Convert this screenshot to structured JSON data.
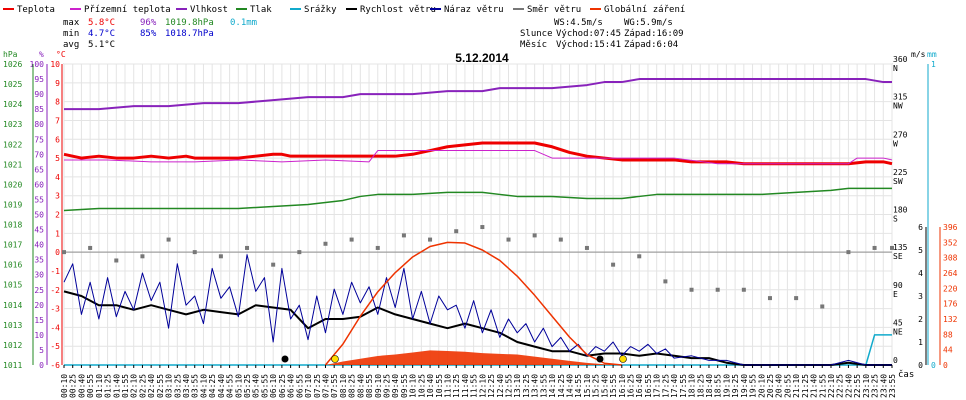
{
  "legend": [
    {
      "label": "Teplota",
      "color": "#ee0000"
    },
    {
      "label": "Přízemní teplota",
      "color": "#cc22cc"
    },
    {
      "label": "Vlhkost",
      "color": "#8822bb"
    },
    {
      "label": "Tlak",
      "color": "#228822"
    },
    {
      "label": "Srážky",
      "color": "#11aacc"
    },
    {
      "label": "Rychlost větru",
      "color": "#000000"
    },
    {
      "label": "Náraz větru",
      "color": "#000099"
    },
    {
      "label": "Směr větru",
      "color": "#777777"
    },
    {
      "label": "Globální záření",
      "color": "#ee3300"
    }
  ],
  "stats": {
    "max_label": "max",
    "max_temp": "5.8°C",
    "max_hum": "96%",
    "max_press": "1019.8hPa",
    "max_rain": "0.1mm",
    "min_label": "min",
    "min_temp": "4.7°C",
    "min_hum": "85%",
    "min_press": "1018.7hPa",
    "avg_label": "avg",
    "avg_temp": "5.1°C"
  },
  "info": {
    "ws": "WS:4.5m/s",
    "wg": "WG:5.9m/s",
    "sun_label": "Slunce",
    "sun_rise": "Východ:07:45",
    "sun_set": "Západ:16:09",
    "moon_label": "Měsíc",
    "moon_rise": "Východ:15:41",
    "moon_set": "Západ:6:04"
  },
  "chart_data": {
    "type": "line",
    "title": "5.12.2014",
    "x_label": "čas",
    "x_ticks": [
      "00:10",
      "00:25",
      "00:40",
      "00:55",
      "01:10",
      "01:25",
      "01:40",
      "01:55",
      "02:10",
      "02:25",
      "02:40",
      "02:55",
      "03:10",
      "03:25",
      "03:40",
      "03:55",
      "04:10",
      "04:25",
      "04:40",
      "04:55",
      "05:10",
      "05:25",
      "05:40",
      "05:55",
      "06:10",
      "06:25",
      "06:40",
      "06:55",
      "07:10",
      "07:25",
      "07:40",
      "07:55",
      "08:10",
      "08:25",
      "08:40",
      "08:55",
      "09:10",
      "09:25",
      "09:40",
      "09:55",
      "10:10",
      "10:25",
      "10:40",
      "10:55",
      "11:10",
      "11:25",
      "11:40",
      "11:55",
      "12:10",
      "12:25",
      "12:40",
      "12:55",
      "13:10",
      "13:25",
      "13:40",
      "13:55",
      "14:10",
      "14:25",
      "14:40",
      "14:55",
      "15:10",
      "15:25",
      "15:40",
      "15:55",
      "16:10",
      "16:25",
      "16:40",
      "16:55",
      "17:10",
      "17:25",
      "17:40",
      "17:55",
      "18:10",
      "18:25",
      "18:40",
      "18:55",
      "19:10",
      "19:25",
      "19:40",
      "19:55",
      "20:10",
      "20:25",
      "20:40",
      "20:55",
      "21:10",
      "21:25",
      "21:40",
      "21:55",
      "22:10",
      "22:25",
      "22:40",
      "22:55",
      "23:10",
      "23:25",
      "23:40",
      "23:55"
    ],
    "axes": {
      "hpa": {
        "label": "hPa",
        "color": "#228822",
        "ticks": [
          1011,
          1012,
          1013,
          1014,
          1015,
          1016,
          1017,
          1018,
          1019,
          1020,
          1021,
          1022,
          1023,
          1024,
          1025,
          1026
        ]
      },
      "percent": {
        "label": "%",
        "color": "#8822bb",
        "ticks": [
          0,
          5,
          10,
          15,
          20,
          25,
          30,
          35,
          40,
          45,
          50,
          55,
          60,
          65,
          70,
          75,
          80,
          85,
          90,
          95,
          100
        ]
      },
      "celsius": {
        "label": "°C",
        "color": "#ee0000",
        "ticks": [
          -6,
          -5,
          -4,
          -3,
          -2,
          -1,
          0,
          1,
          2,
          3,
          4,
          5,
          6,
          7,
          8,
          9,
          10
        ]
      },
      "direction": {
        "label": "",
        "ticks": [
          "360 N",
          "315 NW",
          "270 W",
          "225 SW",
          "180 S",
          "135 SE",
          "90 E",
          "45 NE",
          "0"
        ]
      },
      "ms": {
        "label": "m/s",
        "color": "#000000",
        "ticks": [
          0,
          1,
          2,
          3,
          4,
          5,
          6
        ]
      },
      "mm": {
        "label": "mm",
        "color": "#11aacc",
        "ticks": [
          0,
          1
        ]
      },
      "radiation": {
        "label": "",
        "color": "#ee3300",
        "ticks": [
          0,
          44,
          88,
          132,
          176,
          220,
          264,
          308,
          352,
          396
        ]
      }
    },
    "series": [
      {
        "name": "Teplota",
        "color": "#ee0000",
        "x": [
          0,
          2,
          4,
          6,
          8,
          10,
          12,
          14,
          15,
          16,
          18,
          20,
          22,
          24,
          25,
          26,
          28,
          30,
          32,
          33,
          34,
          36,
          38,
          40,
          42,
          44,
          46,
          48,
          50,
          52,
          54,
          55,
          56,
          58,
          60,
          62,
          64,
          66,
          68,
          70,
          72,
          74,
          76,
          78,
          80,
          82,
          84,
          86,
          88,
          90,
          92,
          94,
          95
        ],
        "y": [
          5.2,
          5.0,
          5.1,
          5.0,
          5.0,
          5.1,
          5.0,
          5.1,
          5.0,
          5.0,
          5.0,
          5.0,
          5.1,
          5.2,
          5.2,
          5.1,
          5.1,
          5.1,
          5.1,
          5.1,
          5.1,
          5.1,
          5.1,
          5.2,
          5.4,
          5.6,
          5.7,
          5.8,
          5.8,
          5.8,
          5.8,
          5.7,
          5.6,
          5.3,
          5.1,
          5.0,
          4.9,
          4.9,
          4.9,
          4.9,
          4.8,
          4.8,
          4.8,
          4.7,
          4.7,
          4.7,
          4.7,
          4.7,
          4.7,
          4.7,
          4.8,
          4.8,
          4.7
        ]
      },
      {
        "name": "Přízemní teplota",
        "color": "#cc22cc",
        "x": [
          0,
          5,
          10,
          15,
          20,
          25,
          30,
          35,
          36,
          40,
          45,
          50,
          54,
          55,
          56,
          58,
          60,
          65,
          70,
          75,
          80,
          85,
          90,
          91,
          92,
          94,
          95
        ],
        "y": [
          4.9,
          4.9,
          4.8,
          4.8,
          4.9,
          4.8,
          4.9,
          4.8,
          5.4,
          5.4,
          5.4,
          5.4,
          5.4,
          5.2,
          5.0,
          5.0,
          5.0,
          5.0,
          5.0,
          4.7,
          4.7,
          4.7,
          4.7,
          5.0,
          5.0,
          5.0,
          4.9
        ]
      },
      {
        "name": "Vlhkost",
        "color": "#8822bb",
        "x": [
          0,
          4,
          8,
          12,
          16,
          20,
          24,
          28,
          32,
          34,
          36,
          40,
          44,
          48,
          50,
          52,
          56,
          60,
          62,
          64,
          66,
          68,
          72,
          76,
          80,
          84,
          88,
          90,
          92,
          94,
          95
        ],
        "y": [
          85,
          85,
          86,
          86,
          87,
          87,
          88,
          89,
          89,
          90,
          90,
          90,
          91,
          91,
          92,
          92,
          92,
          93,
          94,
          94,
          95,
          95,
          95,
          95,
          95,
          95,
          95,
          95,
          95,
          94,
          94
        ]
      },
      {
        "name": "Tlak",
        "color": "#228822",
        "x": [
          0,
          4,
          8,
          12,
          16,
          20,
          24,
          28,
          30,
          32,
          34,
          36,
          40,
          44,
          46,
          48,
          50,
          52,
          56,
          60,
          62,
          64,
          66,
          68,
          72,
          76,
          80,
          84,
          88,
          90,
          92,
          95
        ],
        "y": [
          1018.7,
          1018.8,
          1018.8,
          1018.8,
          1018.8,
          1018.8,
          1018.9,
          1019.0,
          1019.1,
          1019.2,
          1019.4,
          1019.5,
          1019.5,
          1019.6,
          1019.6,
          1019.6,
          1019.5,
          1019.4,
          1019.4,
          1019.3,
          1019.3,
          1019.3,
          1019.4,
          1019.5,
          1019.5,
          1019.5,
          1019.5,
          1019.6,
          1019.7,
          1019.8,
          1019.8,
          1019.8
        ]
      },
      {
        "name": "Srážky",
        "color": "#11aacc",
        "x": [
          0,
          20,
          40,
          60,
          80,
          90,
          92,
          93,
          94,
          95
        ],
        "y": [
          0,
          0,
          0,
          0,
          0,
          0,
          0,
          0.1,
          0.1,
          0.1
        ]
      },
      {
        "name": "Rychlost větru",
        "color": "#000000",
        "x": [
          0,
          2,
          4,
          6,
          8,
          10,
          12,
          14,
          16,
          18,
          20,
          22,
          24,
          26,
          28,
          30,
          32,
          34,
          36,
          38,
          40,
          42,
          44,
          46,
          48,
          50,
          52,
          54,
          56,
          58,
          60,
          62,
          64,
          66,
          68,
          70,
          72,
          74,
          76,
          78,
          80,
          82,
          84,
          86,
          88,
          90,
          92,
          94,
          95
        ],
        "y": [
          3.2,
          3.0,
          2.6,
          2.6,
          2.4,
          2.6,
          2.4,
          2.2,
          2.4,
          2.3,
          2.2,
          2.6,
          2.5,
          2.4,
          1.6,
          2.0,
          2.0,
          2.1,
          2.5,
          2.2,
          2.0,
          1.8,
          1.6,
          1.8,
          1.6,
          1.4,
          1.0,
          0.8,
          0.6,
          0.6,
          0.4,
          0.5,
          0.5,
          0.4,
          0.5,
          0.4,
          0.3,
          0.3,
          0.1,
          0,
          0,
          0,
          0,
          0,
          0,
          0.1,
          0,
          0,
          0
        ]
      },
      {
        "name": "Náraz větru",
        "color": "#000099",
        "x": [
          0,
          1,
          2,
          3,
          4,
          5,
          6,
          7,
          8,
          9,
          10,
          11,
          12,
          13,
          14,
          15,
          16,
          17,
          18,
          19,
          20,
          21,
          22,
          23,
          24,
          25,
          26,
          27,
          28,
          29,
          30,
          31,
          32,
          33,
          34,
          35,
          36,
          37,
          38,
          39,
          40,
          41,
          42,
          43,
          44,
          45,
          46,
          47,
          48,
          49,
          50,
          51,
          52,
          53,
          54,
          55,
          56,
          57,
          58,
          59,
          60,
          61,
          62,
          63,
          64,
          65,
          66,
          67,
          68,
          69,
          70,
          72,
          74,
          76,
          78,
          80,
          82,
          84,
          86,
          88,
          90,
          92,
          94,
          95
        ],
        "y": [
          3.6,
          4.4,
          2.2,
          3.6,
          2.0,
          3.8,
          2.1,
          3.2,
          2.4,
          4.0,
          2.8,
          3.6,
          1.6,
          4.4,
          2.6,
          3.0,
          1.8,
          4.2,
          2.9,
          3.4,
          2.1,
          4.8,
          3.2,
          3.8,
          1.0,
          4.2,
          2.0,
          2.6,
          1.1,
          3.0,
          1.4,
          3.3,
          2.2,
          3.6,
          2.7,
          3.4,
          2.2,
          3.8,
          2.5,
          4.2,
          2.0,
          3.2,
          1.8,
          3.0,
          2.4,
          2.6,
          1.6,
          2.8,
          1.4,
          2.4,
          1.2,
          2.0,
          1.4,
          1.8,
          1.0,
          1.6,
          0.8,
          1.2,
          0.6,
          0.9,
          0.4,
          0.8,
          0.6,
          1.0,
          0.4,
          0.8,
          0.6,
          0.9,
          0.5,
          0.7,
          0.3,
          0.4,
          0.2,
          0.2,
          0,
          0,
          0,
          0,
          0,
          0,
          0.2,
          0,
          0,
          0
        ]
      },
      {
        "name": "Směr větru",
        "color": "#777777",
        "type": "scatter",
        "x": [
          0,
          3,
          6,
          9,
          12,
          15,
          18,
          21,
          24,
          27,
          30,
          33,
          36,
          39,
          42,
          45,
          48,
          51,
          54,
          57,
          60,
          63,
          66,
          69,
          72,
          75,
          78,
          81,
          84,
          87,
          90,
          93,
          95
        ],
        "y": [
          135,
          140,
          125,
          130,
          150,
          135,
          130,
          140,
          120,
          135,
          145,
          150,
          140,
          155,
          150,
          160,
          165,
          150,
          155,
          150,
          140,
          120,
          130,
          100,
          90,
          90,
          90,
          80,
          80,
          70,
          135,
          140,
          140
        ]
      },
      {
        "name": "Globální záření",
        "color": "#ee3300",
        "type": "area",
        "x": [
          30,
          32,
          34,
          36,
          38,
          40,
          42,
          44,
          46,
          48,
          50,
          52,
          54,
          56,
          58,
          60,
          62,
          64
        ],
        "y": [
          0,
          10,
          18,
          26,
          30,
          36,
          42,
          40,
          38,
          34,
          32,
          30,
          24,
          18,
          12,
          6,
          2,
          0
        ]
      },
      {
        "name": "Globální záření max",
        "color": "#ee3300",
        "x": [
          30,
          32,
          34,
          36,
          38,
          40,
          42,
          44,
          46,
          48,
          50,
          52,
          54,
          56,
          58,
          60,
          62,
          64
        ],
        "y": [
          0,
          60,
          140,
          210,
          265,
          310,
          340,
          352,
          350,
          330,
          300,
          255,
          200,
          140,
          80,
          30,
          5,
          0
        ]
      }
    ],
    "grid": true
  }
}
